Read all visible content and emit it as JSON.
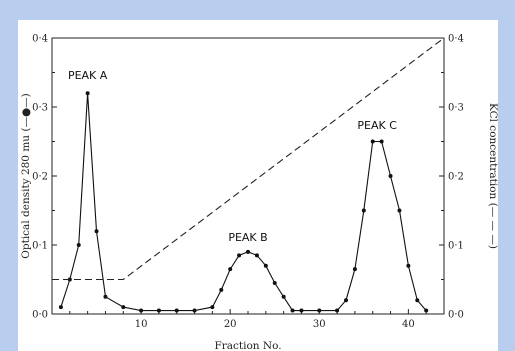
{
  "chart_data": {
    "type": "line",
    "xlabel": "Fraction No.",
    "ylabel_left": "Optical density 280 mu (—●—)",
    "ylabel_right": "KCl concentration (— — —)",
    "xlim": [
      0,
      44
    ],
    "ylim_left": [
      0,
      0.4
    ],
    "ylim_right": [
      0,
      0.4
    ],
    "x_ticks": [
      10,
      20,
      30,
      40
    ],
    "y_ticks": [
      "0·0",
      "0·1",
      "0·2",
      "0·3",
      "0·4"
    ],
    "y_tick_values": [
      0,
      0.1,
      0.2,
      0.3,
      0.4
    ],
    "y2_ticks": [
      "0·0",
      "0·1",
      "0·2",
      "0·3",
      "0·4"
    ],
    "annotations": [
      "PEAK A",
      "PEAK B",
      "PEAK C"
    ],
    "annotation_anchors": [
      {
        "x": 4,
        "y": 0.335
      },
      {
        "x": 22,
        "y": 0.1
      },
      {
        "x": 36.5,
        "y": 0.262
      }
    ],
    "series": [
      {
        "style": "solid-dots",
        "axis": "left",
        "x": [
          1,
          2,
          3,
          4,
          5,
          6,
          8,
          10,
          12,
          14,
          16,
          18,
          19,
          20,
          21,
          22,
          23,
          24,
          25,
          26,
          27,
          28,
          30,
          32,
          33,
          34,
          35,
          36,
          37,
          38,
          39,
          40,
          41,
          42
        ],
        "y": [
          0.01,
          0.05,
          0.1,
          0.32,
          0.12,
          0.025,
          0.01,
          0.005,
          0.005,
          0.005,
          0.005,
          0.01,
          0.035,
          0.065,
          0.085,
          0.09,
          0.085,
          0.07,
          0.045,
          0.025,
          0.005,
          0.005,
          0.005,
          0.005,
          0.02,
          0.065,
          0.15,
          0.25,
          0.25,
          0.2,
          0.15,
          0.07,
          0.02,
          0.005
        ]
      },
      {
        "style": "dashed",
        "axis": "right",
        "x": [
          0,
          8,
          44
        ],
        "y": [
          0.05,
          0.05,
          0.4
        ]
      }
    ]
  }
}
